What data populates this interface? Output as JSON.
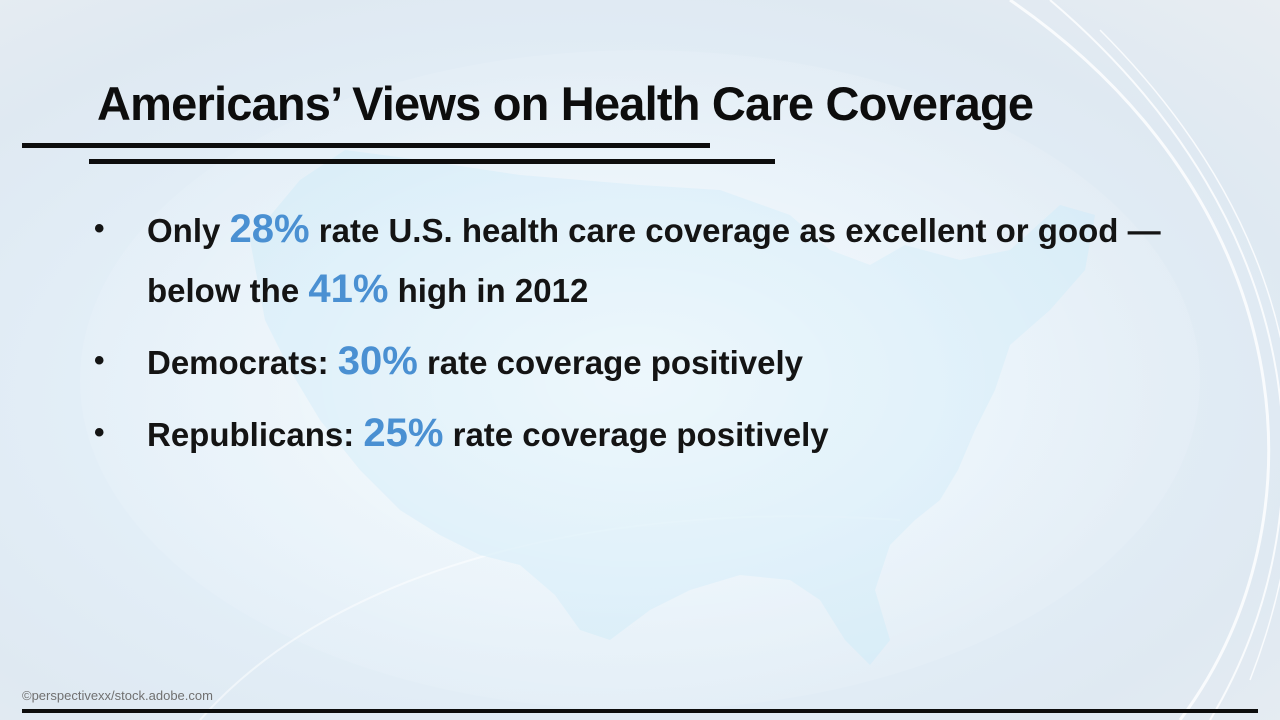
{
  "slide": {
    "title": "Americans’ Views on Health Care Coverage",
    "credit": "©perspectivexx/stock.adobe.com"
  },
  "bullets": [
    {
      "before": "Only ",
      "highlight": "28%",
      "middle": " rate U.S. health care coverage as excellent or good — below the ",
      "highlight2": "41%",
      "after": " high in 2012"
    },
    {
      "before": "Democrats: ",
      "highlight": "30%",
      "after": " rate coverage positively"
    },
    {
      "before": "Republicans: ",
      "highlight": "25%",
      "after": " rate coverage positively"
    }
  ],
  "colors": {
    "highlight": "#4a90d2",
    "text": "#141414",
    "rule": "#0d0d0d",
    "map": "#d2ecf8"
  }
}
